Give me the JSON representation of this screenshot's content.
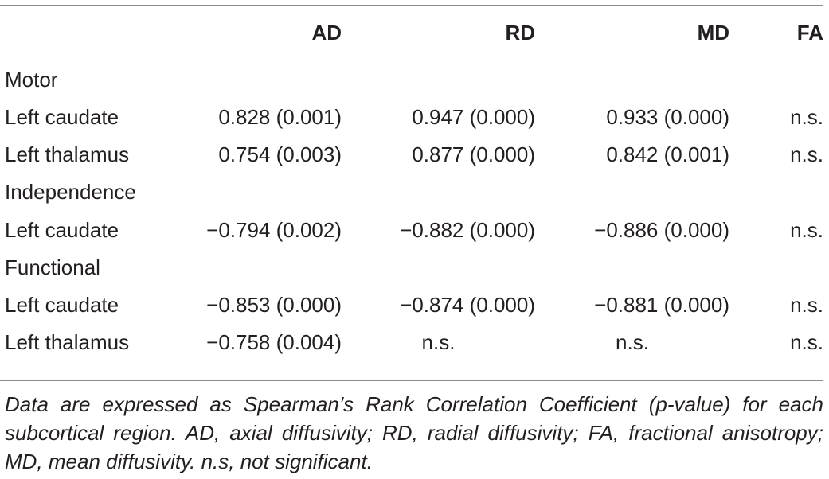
{
  "table": {
    "columns": [
      "",
      "AD",
      "RD",
      "MD",
      "FA"
    ],
    "rows": [
      {
        "type": "group",
        "label": "Motor"
      },
      {
        "type": "data",
        "label": "Left caudate",
        "AD": "0.828 (0.001)",
        "RD": "0.947 (0.000)",
        "MD": "0.933 (0.000)",
        "FA": "n.s."
      },
      {
        "type": "data",
        "label": "Left thalamus",
        "AD": "0.754 (0.003)",
        "RD": "0.877 (0.000)",
        "MD": "0.842 (0.001)",
        "FA": "n.s."
      },
      {
        "type": "group",
        "label": "Independence"
      },
      {
        "type": "data",
        "label": "Left caudate",
        "AD": "−0.794 (0.002)",
        "RD": "−0.882 (0.000)",
        "MD": "−0.886 (0.000)",
        "FA": "n.s."
      },
      {
        "type": "group",
        "label": "Functional"
      },
      {
        "type": "data",
        "label": "Left caudate",
        "AD": "−0.853 (0.000)",
        "RD": "−0.874 (0.000)",
        "MD": "−0.881 (0.000)",
        "FA": "n.s."
      },
      {
        "type": "data",
        "label": "Left thalamus",
        "AD": "−0.758 (0.004)",
        "RD": "n.s.",
        "MD": "n.s.",
        "FA": "n.s."
      }
    ]
  },
  "footnote": "Data are expressed as Spearman’s Rank Correlation Coefficient (p-value) for each subcortical region. AD, axial diffusivity; RD, radial diffusivity; FA, fractional anisotropy; MD, mean diffusivity. n.s, not significant."
}
